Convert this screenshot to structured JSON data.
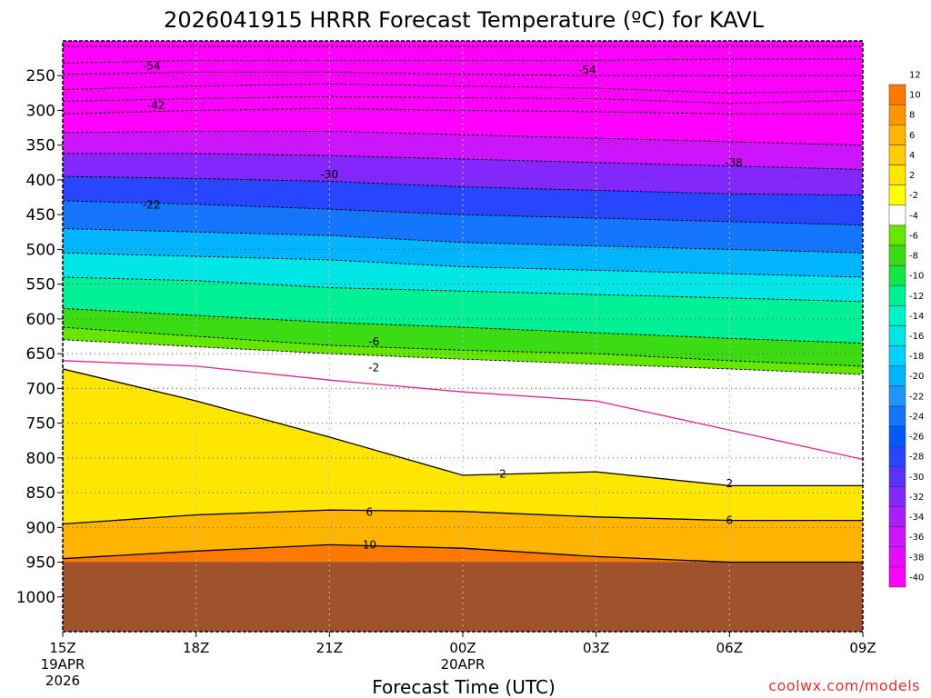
{
  "title": "2026041915 HRRR Forecast Temperature (ºC) for KAVL",
  "xlabel": "Forecast Time (UTC)",
  "credit": "coolwx.com/models",
  "chart_data": {
    "type": "heatmap",
    "title": "2026041915 HRRR Forecast Temperature (ºC) for KAVL",
    "xlabel": "Forecast Time (UTC)",
    "ylabel": "",
    "y_axis": {
      "unit": "hPa",
      "reversed": true,
      "range": [
        200,
        1050
      ],
      "ticks": [
        250,
        300,
        350,
        400,
        450,
        500,
        550,
        600,
        650,
        700,
        750,
        800,
        850,
        900,
        950,
        1000
      ]
    },
    "x_axis": {
      "range_hours": [
        0,
        18
      ],
      "ticks": [
        {
          "hour": 0,
          "label": "15Z",
          "sub1": "19APR",
          "sub2": "2026"
        },
        {
          "hour": 3,
          "label": "18Z",
          "sub1": "",
          "sub2": ""
        },
        {
          "hour": 6,
          "label": "21Z",
          "sub1": "",
          "sub2": ""
        },
        {
          "hour": 9,
          "label": "00Z",
          "sub1": "20APR",
          "sub2": ""
        },
        {
          "hour": 12,
          "label": "03Z",
          "sub1": "",
          "sub2": ""
        },
        {
          "hour": 15,
          "label": "06Z",
          "sub1": "",
          "sub2": ""
        },
        {
          "hour": 18,
          "label": "09Z",
          "sub1": "",
          "sub2": ""
        }
      ]
    },
    "grid": true,
    "ground_color": "#a0522d",
    "surface_pressure": 950,
    "colorbar": {
      "placement": "right",
      "colors": [
        "#ff00ff",
        "#e60aff",
        "#cc14ff",
        "#a81eff",
        "#8228ff",
        "#5a32ff",
        "#2846ff",
        "#005aff",
        "#1476ff",
        "#1e96ff",
        "#00b4ff",
        "#00d2ff",
        "#00e6e6",
        "#00f0c8",
        "#00f096",
        "#14e646",
        "#3cdc14",
        "#64e600",
        "#ffffff",
        "#ffff00",
        "#ffe600",
        "#ffcc00",
        "#ffb400",
        "#ff9600",
        "#ff7800"
      ],
      "labels": [
        "-40",
        "-38",
        "-36",
        "-34",
        "-32",
        "-30",
        "-28",
        "-26",
        "-24",
        "-22",
        "-20",
        "-18",
        "-16",
        "-14",
        "-12",
        "-10",
        "-8",
        "-6",
        "-4",
        "-2",
        "2",
        "4",
        "6",
        "8",
        "10",
        "12"
      ]
    },
    "isotherms": [
      {
        "temp": -58,
        "dashed": true,
        "pressures": [
          208,
          208,
          208,
          208,
          208,
          208,
          208
        ]
      },
      {
        "temp": -56,
        "dashed": true,
        "pressures": [
          232,
          228,
          228,
          228,
          228,
          226,
          226
        ]
      },
      {
        "temp": -54,
        "dashed": true,
        "pressures": [
          248,
          245,
          245,
          248,
          250,
          250,
          250
        ]
      },
      {
        "temp": -50,
        "dashed": true,
        "pressures": [
          270,
          265,
          262,
          265,
          268,
          275,
          272
        ]
      },
      {
        "temp": -46,
        "dashed": true,
        "pressures": [
          287,
          283,
          280,
          282,
          283,
          290,
          285
        ]
      },
      {
        "temp": -42,
        "dashed": true,
        "pressures": [
          305,
          300,
          297,
          300,
          302,
          305,
          305
        ]
      },
      {
        "temp": -38,
        "dashed": true,
        "pressures": [
          332,
          330,
          330,
          335,
          340,
          345,
          350
        ]
      },
      {
        "temp": -34,
        "dashed": true,
        "pressures": [
          362,
          362,
          365,
          370,
          375,
          380,
          385
        ]
      },
      {
        "temp": -30,
        "dashed": true,
        "pressures": [
          395,
          398,
          402,
          410,
          415,
          420,
          422
        ]
      },
      {
        "temp": -26,
        "dashed": true,
        "pressures": [
          430,
          435,
          442,
          450,
          455,
          460,
          465
        ]
      },
      {
        "temp": -22,
        "dashed": true,
        "pressures": [
          470,
          475,
          480,
          490,
          495,
          500,
          505
        ]
      },
      {
        "temp": -18,
        "dashed": true,
        "pressures": [
          505,
          510,
          515,
          525,
          530,
          535,
          540
        ]
      },
      {
        "temp": -14,
        "dashed": true,
        "pressures": [
          540,
          545,
          555,
          560,
          565,
          570,
          575
        ]
      },
      {
        "temp": -10,
        "dashed": true,
        "pressures": [
          585,
          595,
          605,
          612,
          620,
          628,
          635
        ]
      },
      {
        "temp": -6,
        "dashed": true,
        "pressures": [
          612,
          625,
          638,
          645,
          650,
          660,
          668
        ]
      },
      {
        "temp": -2,
        "dashed": true,
        "pressures": [
          630,
          640,
          650,
          658,
          665,
          672,
          680
        ]
      },
      {
        "temp": 0,
        "dashed": false,
        "color": "#e0208c",
        "pressures": [
          660,
          668,
          688,
          705,
          718,
          760,
          802
        ]
      },
      {
        "temp": 2,
        "dashed": false,
        "pressures": [
          672,
          718,
          770,
          825,
          820,
          840,
          840
        ]
      },
      {
        "temp": 6,
        "dashed": false,
        "pressures": [
          895,
          882,
          875,
          877,
          885,
          890,
          890
        ]
      },
      {
        "temp": 10,
        "dashed": false,
        "pressures": [
          945,
          934,
          925,
          930,
          942,
          950,
          950
        ]
      }
    ],
    "contour_labels": [
      {
        "text": "-54",
        "hour": 2.0,
        "pressure": 236
      },
      {
        "text": "-54",
        "hour": 11.8,
        "pressure": 242
      },
      {
        "text": "-42",
        "hour": 2.1,
        "pressure": 293
      },
      {
        "text": "-38",
        "hour": 15.1,
        "pressure": 375
      },
      {
        "text": "-30",
        "hour": 6.0,
        "pressure": 392
      },
      {
        "text": "-22",
        "hour": 2.0,
        "pressure": 436
      },
      {
        "text": "-6",
        "hour": 7.0,
        "pressure": 633
      },
      {
        "text": "-2",
        "hour": 7.0,
        "pressure": 670
      },
      {
        "text": "2",
        "hour": 9.9,
        "pressure": 823
      },
      {
        "text": "2",
        "hour": 15.0,
        "pressure": 837
      },
      {
        "text": "6",
        "hour": 6.9,
        "pressure": 878
      },
      {
        "text": "6",
        "hour": 15.0,
        "pressure": 890
      },
      {
        "text": "10",
        "hour": 6.9,
        "pressure": 925
      }
    ]
  }
}
